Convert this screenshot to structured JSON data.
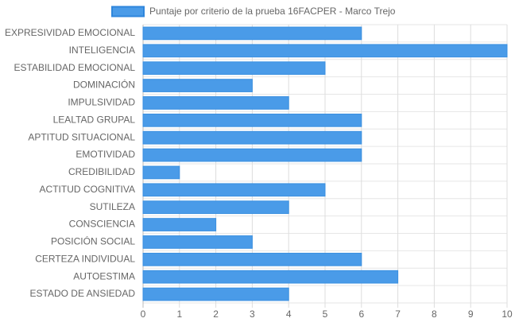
{
  "chart_data": {
    "type": "bar",
    "orientation": "horizontal",
    "categories": [
      "EXPRESIVIDAD EMOCIONAL",
      "INTELIGENCIA",
      "ESTABILIDAD EMOCIONAL",
      "DOMINACIÓN",
      "IMPULSIVIDAD",
      "LEALTAD GRUPAL",
      "APTITUD SITUACIONAL",
      "EMOTIVIDAD",
      "CREDIBILIDAD",
      "ACTITUD COGNITIVA",
      "SUTILEZA",
      "CONSCIENCIA",
      "POSICIÓN SOCIAL",
      "CERTEZA INDIVIDUAL",
      "AUTOESTIMA",
      "ESTADO DE ANSIEDAD"
    ],
    "series": [
      {
        "name": "Puntaje por criterio de la prueba 16FACPER - Marco Trejo",
        "color": "#4a9be8",
        "values": [
          6,
          10,
          5,
          3,
          4,
          6,
          6,
          6,
          1,
          5,
          4,
          2,
          3,
          6,
          7,
          4
        ]
      }
    ],
    "xlim": [
      0,
      10
    ],
    "xticks": [
      0,
      1,
      2,
      3,
      4,
      5,
      6,
      7,
      8,
      9,
      10
    ],
    "grid": true,
    "legend": "top"
  }
}
